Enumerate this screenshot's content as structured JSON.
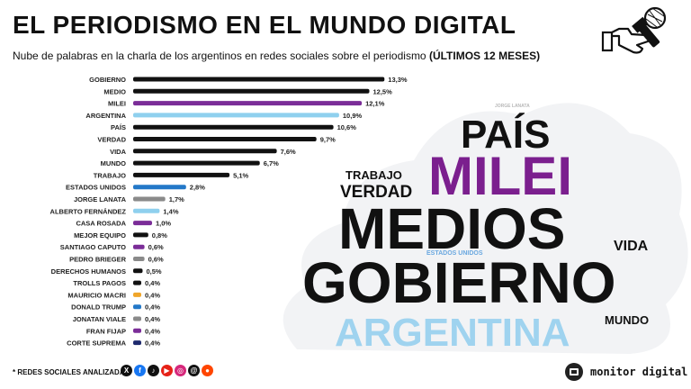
{
  "header": {
    "title": "EL PERIODISMO EN EL MUNDO DIGITAL",
    "subtitle": "Nube de palabras en la charla de los argentinos en redes sociales sobre el periodismo",
    "subtitle_bold": "(ÚLTIMOS 12 MESES)"
  },
  "chart_data": {
    "type": "bar",
    "orientation": "horizontal",
    "categories": [
      "GOBIERNO",
      "MEDIO",
      "MILEI",
      "ARGENTINA",
      "PAÍS",
      "VERDAD",
      "VIDA",
      "MUNDO",
      "TRABAJO",
      "ESTADOS UNIDOS",
      "JORGE LANATA",
      "ALBERTO FERNÁNDEZ",
      "CASA ROSADA",
      "MEJOR EQUIPO",
      "SANTIAGO CAPUTO",
      "PEDRO BRIEGER",
      "DERECHOS HUMANOS",
      "TROLLS PAGOS",
      "MAURICIO MACRI",
      "DONALD TRUMP",
      "JONATAN VIALE",
      "FRAN FIJAP",
      "CORTE SUPREMA"
    ],
    "values": [
      13.3,
      12.5,
      12.1,
      10.9,
      10.6,
      9.7,
      7.6,
      6.7,
      5.1,
      2.8,
      1.7,
      1.4,
      1.0,
      0.8,
      0.6,
      0.6,
      0.5,
      0.4,
      0.4,
      0.4,
      0.4,
      0.4,
      0.4
    ],
    "labels": [
      "13,3%",
      "12,5%",
      "12,1%",
      "10,9%",
      "10,6%",
      "9,7%",
      "7,6%",
      "6,7%",
      "5,1%",
      "2,8%",
      "1,7%",
      "1,4%",
      "1,0%",
      "0,8%",
      "0,6%",
      "0,6%",
      "0,5%",
      "0,4%",
      "0,4%",
      "0,4%",
      "0,4%",
      "0,4%",
      "0,4%"
    ],
    "colors": [
      "#111111",
      "#111111",
      "#7b2d98",
      "#8fd0ee",
      "#111111",
      "#111111",
      "#111111",
      "#111111",
      "#111111",
      "#2378c8",
      "#8a8a8a",
      "#8fd0ee",
      "#7b2d98",
      "#111111",
      "#7b2d98",
      "#8a8a8a",
      "#111111",
      "#111111",
      "#f0a62a",
      "#2378c8",
      "#8a8a8a",
      "#7b2d98",
      "#1f2a6e"
    ],
    "xlim": [
      0,
      14
    ]
  },
  "cloud": {
    "words": [
      {
        "text": "PAÍS",
        "color": "#111111"
      },
      {
        "text": "MILEI",
        "color": "#7b1f8e"
      },
      {
        "text": "TRABAJO",
        "color": "#111111"
      },
      {
        "text": "VERDAD",
        "color": "#111111"
      },
      {
        "text": "MEDIOS",
        "color": "#111111"
      },
      {
        "text": "VIDA",
        "color": "#111111"
      },
      {
        "text": "ESTADOS UNIDOS",
        "color": "#6aa8e0"
      },
      {
        "text": "GOBIERNO",
        "color": "#111111"
      },
      {
        "text": "MUNDO",
        "color": "#111111"
      },
      {
        "text": "ARGENTINA",
        "color": "#9fd3ef"
      },
      {
        "text": "JORGE LANATA",
        "color": "#b8b8b8"
      }
    ]
  },
  "footer": {
    "note": "* REDES SOCIALES ANALIZADAS",
    "networks": [
      {
        "name": "x-icon",
        "glyph": "X",
        "color": "#111111"
      },
      {
        "name": "facebook-icon",
        "glyph": "f",
        "color": "#1877f2"
      },
      {
        "name": "tiktok-icon",
        "glyph": "♪",
        "color": "#111111"
      },
      {
        "name": "youtube-icon",
        "glyph": "▶",
        "color": "#e62117"
      },
      {
        "name": "instagram-icon",
        "glyph": "◎",
        "color": "#d6287b"
      },
      {
        "name": "threads-icon",
        "glyph": "@",
        "color": "#111111"
      },
      {
        "name": "reddit-icon",
        "glyph": "●",
        "color": "#ff4500"
      }
    ],
    "brand": "monitor digital"
  }
}
